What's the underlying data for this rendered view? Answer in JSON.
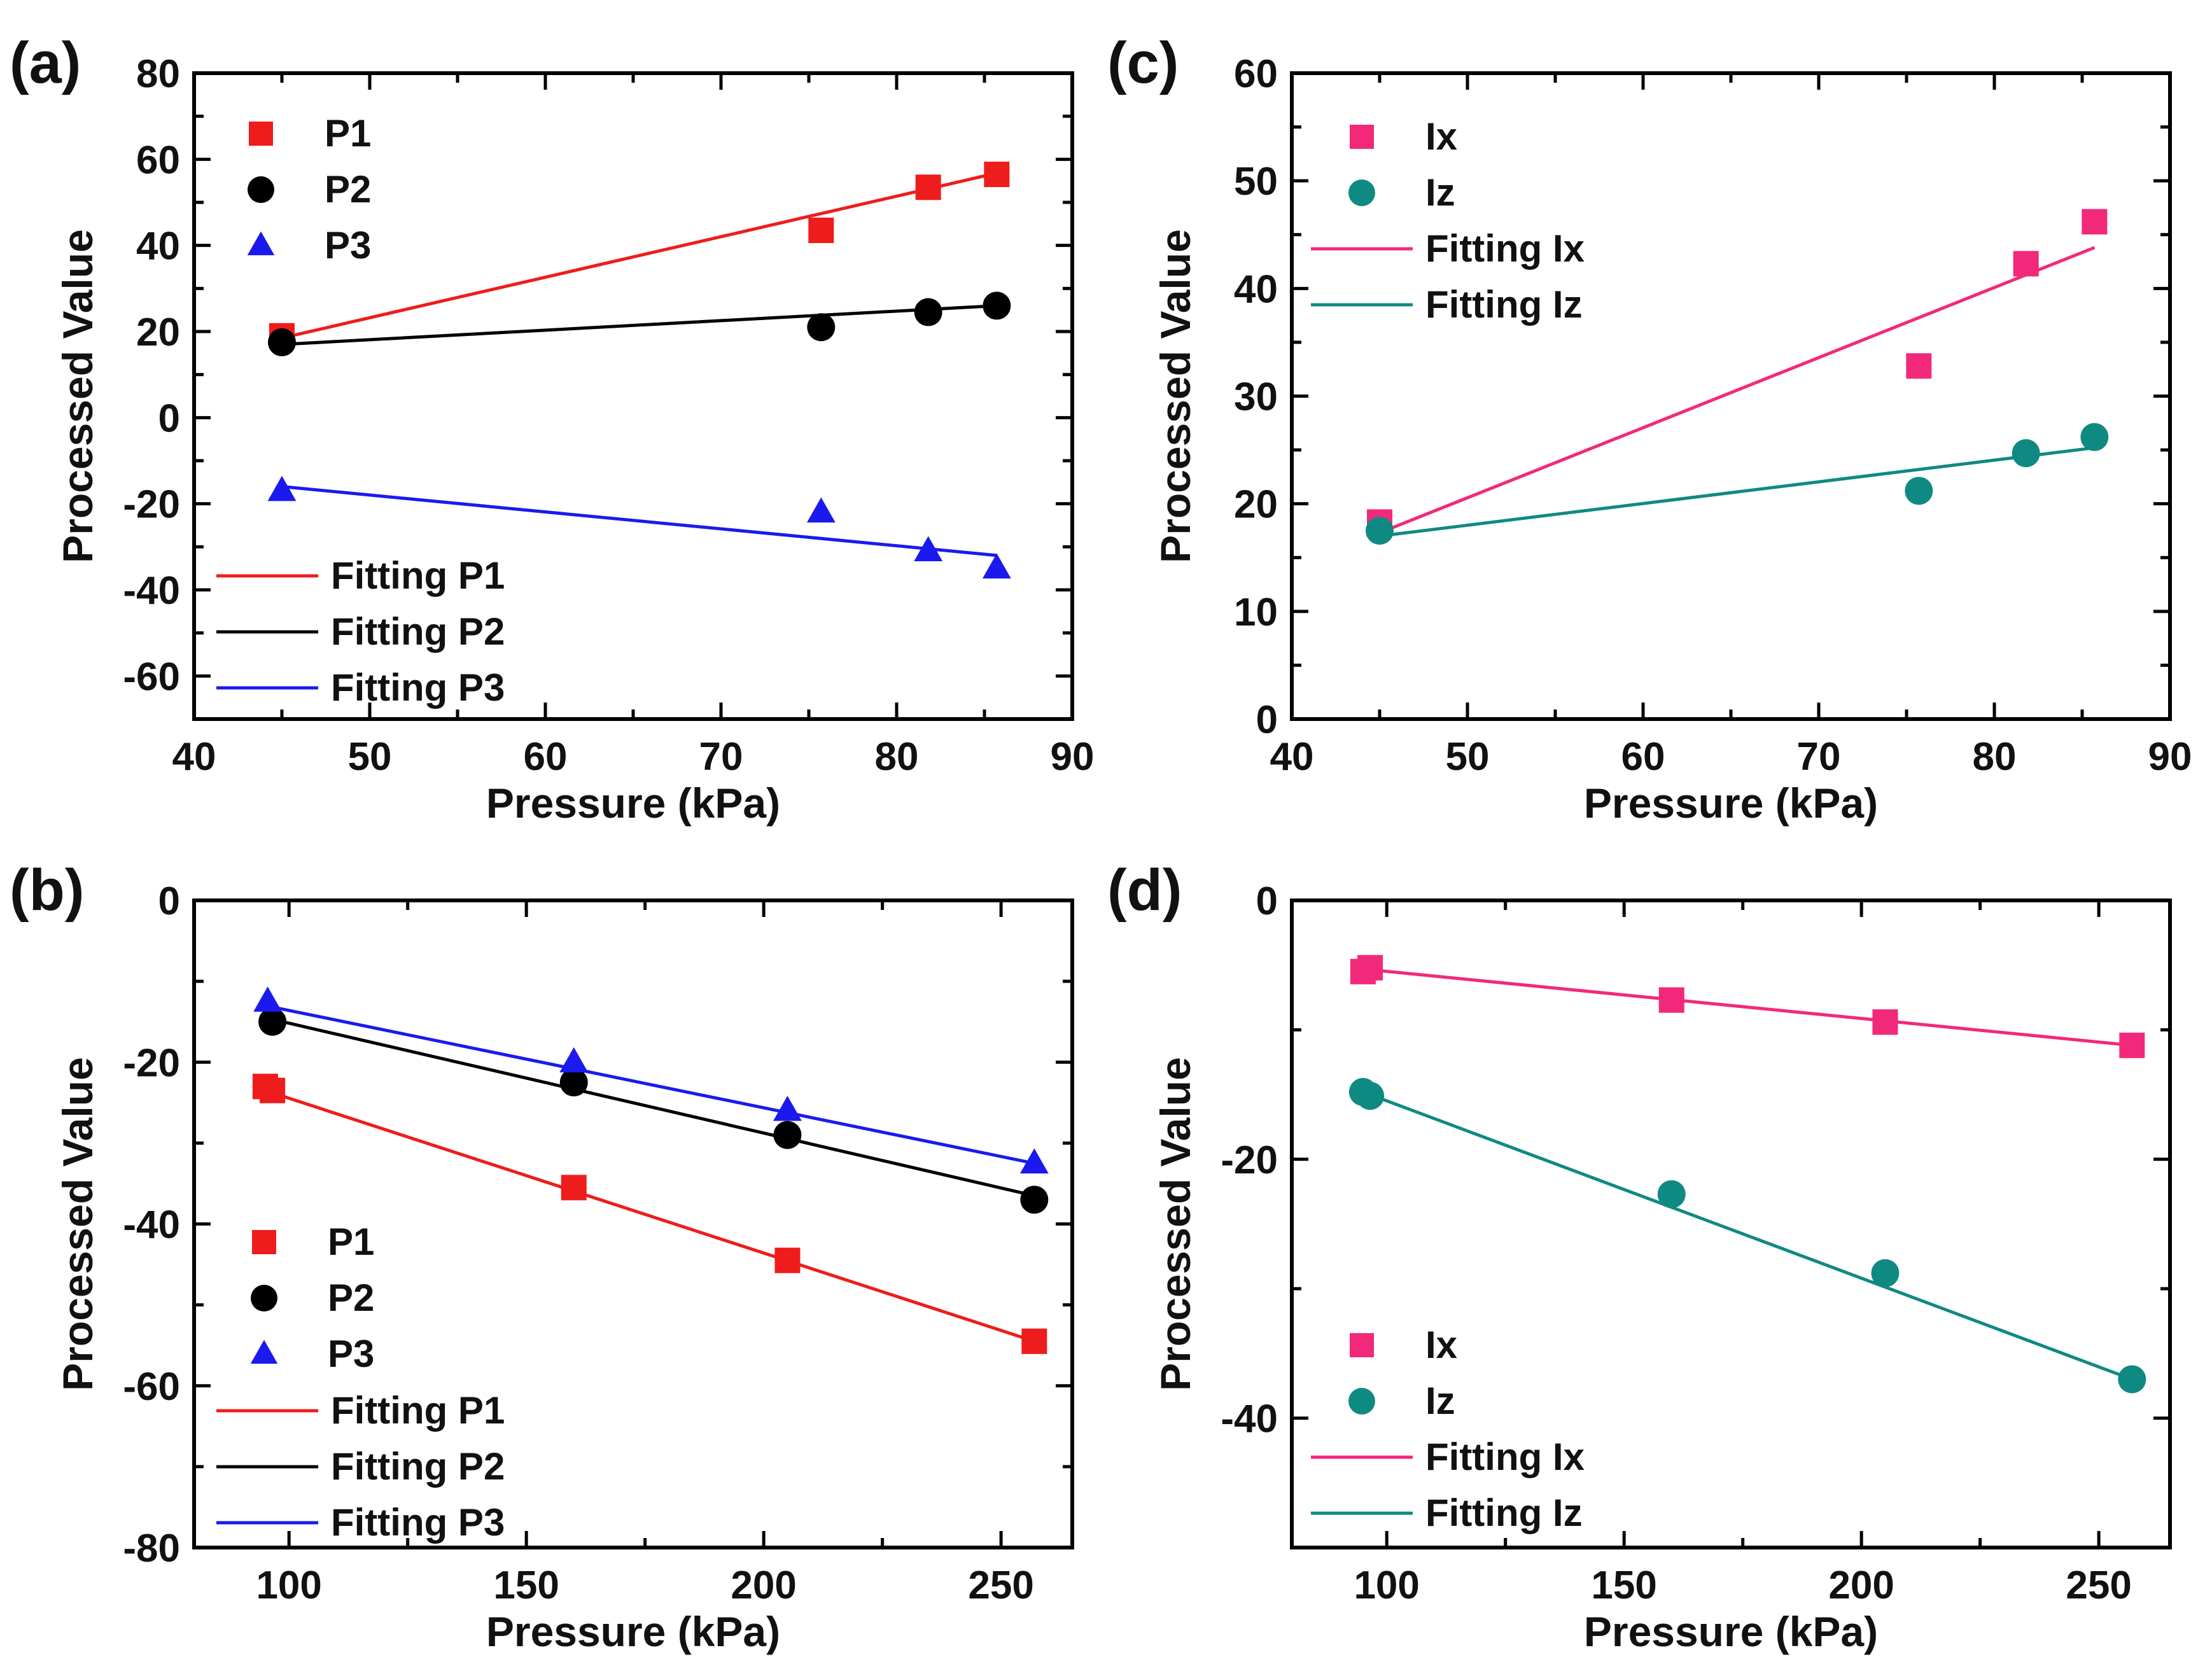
{
  "chart_data": [
    {
      "panel_label": "(a)",
      "type": "scatter",
      "xlabel": "Pressure (kPa)",
      "ylabel": "Processed Value",
      "xlim": [
        40,
        90
      ],
      "ylim": [
        -70,
        80
      ],
      "xticks": [
        40,
        50,
        60,
        70,
        80,
        90
      ],
      "yticks": [
        -60,
        -40,
        -20,
        0,
        20,
        40,
        60,
        80
      ],
      "x_tick_labels": [
        "40",
        "50",
        "60",
        "70",
        "80",
        "90"
      ],
      "y_tick_labels": [
        "-60",
        "-40",
        "-20",
        "0",
        "20",
        "40",
        "60",
        "80"
      ],
      "series": [
        {
          "name": "P1",
          "marker": "square",
          "color": "#ee1c1c",
          "x": [
            45,
            75.7,
            81.8,
            85.7
          ],
          "y": [
            19,
            43.5,
            53.5,
            56.5
          ],
          "fit_name": "Fitting P1",
          "fit": [
            [
              45,
              18.5
            ],
            [
              85.7,
              56.8
            ]
          ]
        },
        {
          "name": "P2",
          "marker": "circle",
          "color": "#000000",
          "x": [
            45,
            75.7,
            81.8,
            85.7
          ],
          "y": [
            17.5,
            21,
            24.5,
            26
          ],
          "fit_name": "Fitting P2",
          "fit": [
            [
              45,
              17
            ],
            [
              85.7,
              26
            ]
          ]
        },
        {
          "name": "P3",
          "marker": "triangle",
          "color": "#1a1aee",
          "x": [
            45,
            75.7,
            81.8,
            85.7
          ],
          "y": [
            -17,
            -22,
            -31,
            -35
          ],
          "fit_name": "Fitting P3",
          "fit": [
            [
              45,
              -16
            ],
            [
              85.7,
              -32
            ]
          ]
        }
      ],
      "legend_markers": [
        "P1",
        "P2",
        "P3"
      ],
      "legend_lines": [
        "Fitting P1",
        "Fitting P2",
        "Fitting P3"
      ]
    },
    {
      "panel_label": "(b)",
      "type": "scatter",
      "xlabel": "Pressure (kPa)",
      "ylabel": "Processed Value",
      "xlim": [
        80,
        265
      ],
      "ylim": [
        -80,
        0
      ],
      "xticks": [
        100,
        150,
        200,
        250
      ],
      "yticks": [
        -80,
        -60,
        -40,
        -20,
        0
      ],
      "x_tick_labels": [
        "100",
        "150",
        "200",
        "250"
      ],
      "y_tick_labels": [
        "-80",
        "-60",
        "-40",
        "-20",
        "0"
      ],
      "series": [
        {
          "name": "P1",
          "marker": "square",
          "color": "#ee1c1c",
          "x": [
            95,
            96.5,
            160,
            205,
            257
          ],
          "y": [
            -23,
            -23.5,
            -35.5,
            -44.5,
            -54.5
          ],
          "fit_name": "Fitting P1",
          "fit": [
            [
              95,
              -23.5
            ],
            [
              257,
              -54.5
            ]
          ]
        },
        {
          "name": "P2",
          "marker": "circle",
          "color": "#000000",
          "x": [
            96.5,
            160,
            205,
            257
          ],
          "y": [
            -15,
            -22.5,
            -29,
            -37
          ],
          "fit_name": "Fitting P2",
          "fit": [
            [
              95,
              -14.5
            ],
            [
              257,
              -36.5
            ]
          ]
        },
        {
          "name": "P3",
          "marker": "triangle",
          "color": "#1a1aee",
          "x": [
            95.5,
            160,
            205,
            257
          ],
          "y": [
            -12.5,
            -20,
            -26,
            -32.5
          ],
          "fit_name": "Fitting P3",
          "fit": [
            [
              95,
              -13
            ],
            [
              257,
              -32.5
            ]
          ]
        }
      ],
      "legend_markers": [
        "P1",
        "P2",
        "P3"
      ],
      "legend_lines": [
        "Fitting P1",
        "Fitting P2",
        "Fitting P3"
      ]
    },
    {
      "panel_label": "(c)",
      "type": "scatter",
      "xlabel": "Pressure (kPa)",
      "ylabel": "Processed Value",
      "xlim": [
        40,
        90
      ],
      "ylim": [
        0,
        60
      ],
      "xticks": [
        40,
        50,
        60,
        70,
        80,
        90
      ],
      "yticks": [
        0,
        10,
        20,
        30,
        40,
        50,
        60
      ],
      "x_tick_labels": [
        "40",
        "50",
        "60",
        "70",
        "80",
        "90"
      ],
      "y_tick_labels": [
        "0",
        "10",
        "20",
        "30",
        "40",
        "50",
        "60"
      ],
      "series": [
        {
          "name": "Ix",
          "marker": "square",
          "color": "#f2297a",
          "x": [
            45,
            75.7,
            81.8,
            85.7
          ],
          "y": [
            18.3,
            32.8,
            42.3,
            46.2
          ],
          "fit_name": "Fitting Ix",
          "fit": [
            [
              45,
              17.3
            ],
            [
              85.7,
              43.8
            ]
          ]
        },
        {
          "name": "Iz",
          "marker": "circle",
          "color": "#0f8a82",
          "x": [
            45,
            75.7,
            81.8,
            85.7
          ],
          "y": [
            17.5,
            21.2,
            24.7,
            26.2
          ],
          "fit_name": "Fitting Iz",
          "fit": [
            [
              45,
              17
            ],
            [
              85.7,
              25.2
            ]
          ]
        }
      ],
      "legend_markers": [
        "Ix",
        "Iz"
      ],
      "legend_lines": [
        "Fitting Ix",
        "Fitting Iz"
      ]
    },
    {
      "panel_label": "(d)",
      "type": "scatter",
      "xlabel": "Pressure (kPa)",
      "ylabel": "Processed Value",
      "xlim": [
        80,
        265
      ],
      "ylim": [
        -50,
        0
      ],
      "xticks": [
        100,
        150,
        200,
        250
      ],
      "yticks": [
        -40,
        -20,
        0
      ],
      "x_tick_labels": [
        "100",
        "150",
        "200",
        "250"
      ],
      "y_tick_labels": [
        "-40",
        "-20",
        "0"
      ],
      "series": [
        {
          "name": "Ix",
          "marker": "square",
          "color": "#f2297a",
          "x": [
            95,
            96.5,
            160,
            205,
            257
          ],
          "y": [
            -5.5,
            -5.2,
            -7.7,
            -9.4,
            -11.2
          ],
          "fit_name": "Fitting Ix",
          "fit": [
            [
              95,
              -5.3
            ],
            [
              257,
              -11.2
            ]
          ]
        },
        {
          "name": "Iz",
          "marker": "circle",
          "color": "#0f8a82",
          "x": [
            95,
            96.5,
            160,
            205,
            257
          ],
          "y": [
            -14.8,
            -15.1,
            -22.7,
            -28.8,
            -37
          ],
          "fit_name": "Fitting Iz",
          "fit": [
            [
              95,
              -14.8
            ],
            [
              257,
              -37
            ]
          ]
        }
      ],
      "legend_markers": [
        "Ix",
        "Iz"
      ],
      "legend_lines": [
        "Fitting Ix",
        "Fitting Iz"
      ]
    }
  ]
}
